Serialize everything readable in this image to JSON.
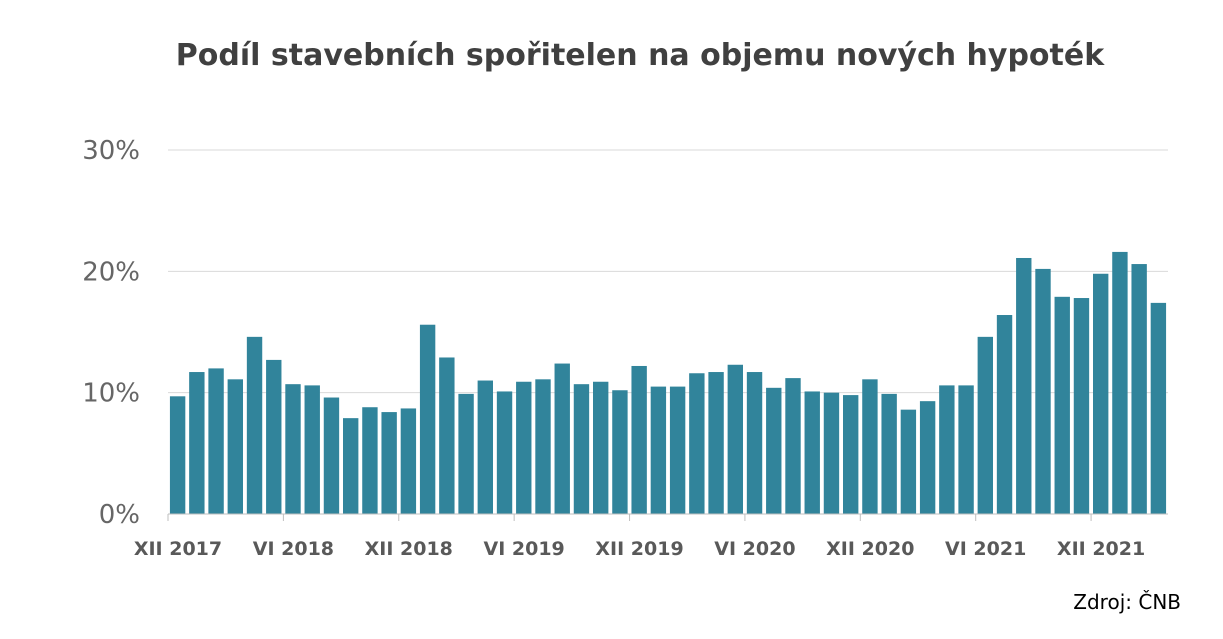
{
  "chart_data": {
    "type": "bar",
    "title": "Podíl stavebních spořitelen na objemu nových hypoték",
    "source": "Zdroj: ČNB",
    "xlabel": "",
    "ylabel": "",
    "ylim": [
      0,
      30
    ],
    "yticks": [
      "0%",
      "10%",
      "20%",
      "30%"
    ],
    "ytick_values": [
      0,
      10,
      20,
      30
    ],
    "xtick_labels": [
      "XII 2017",
      "VI 2018",
      "XII 2018",
      "VI 2019",
      "XII 2019",
      "VI 2020",
      "XII 2020",
      "VI 2021",
      "XII 2021"
    ],
    "xtick_every": 6,
    "grid": true,
    "bar_color": "#31849b",
    "values": [
      9.7,
      11.7,
      12.0,
      11.1,
      14.6,
      12.7,
      10.7,
      10.6,
      9.6,
      7.9,
      8.8,
      8.4,
      8.7,
      15.6,
      12.9,
      9.9,
      11.0,
      10.1,
      10.9,
      11.1,
      12.4,
      10.7,
      10.9,
      10.2,
      12.2,
      10.5,
      10.5,
      11.6,
      11.7,
      12.3,
      11.7,
      10.4,
      11.2,
      10.1,
      10.0,
      9.8,
      11.1,
      9.9,
      8.6,
      9.3,
      10.6,
      10.6,
      14.6,
      16.4,
      21.1,
      20.2,
      17.9,
      17.8,
      19.8,
      21.6,
      20.6,
      17.4
    ]
  }
}
